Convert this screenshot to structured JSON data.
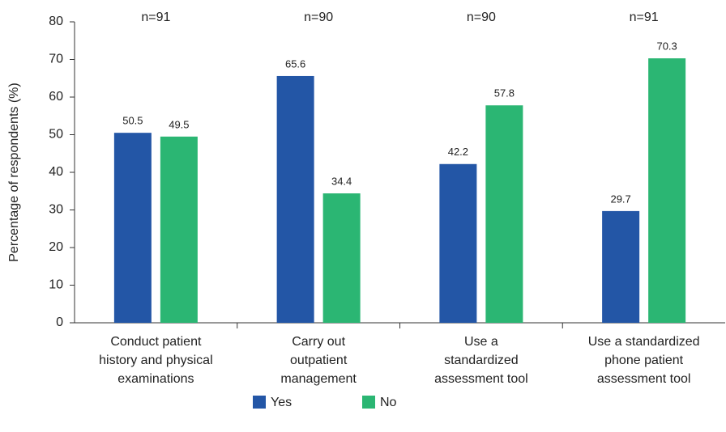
{
  "chart_data": {
    "type": "bar",
    "y_label": "Percentage of respondents (%)",
    "annotations": [
      "n=91",
      "n=90",
      "n=90",
      "n=91"
    ],
    "categories": [
      [
        "Conduct patient",
        "history and physical",
        "examinations"
      ],
      [
        "Carry out",
        "outpatient",
        "management"
      ],
      [
        "Use a",
        "standardized",
        "assessment tool"
      ],
      [
        "Use a standardized",
        "phone patient",
        "assessment tool"
      ]
    ],
    "series": [
      {
        "name": "Yes",
        "color": "#2356a6",
        "values": [
          50.5,
          65.6,
          42.2,
          29.7
        ]
      },
      {
        "name": "No",
        "color": "#2bb673",
        "values": [
          49.5,
          34.4,
          57.8,
          70.3
        ]
      }
    ],
    "ylim": [
      0,
      80
    ],
    "yticks": [
      0,
      10,
      20,
      30,
      40,
      50,
      60,
      70,
      80
    ],
    "legend": "bottom"
  }
}
